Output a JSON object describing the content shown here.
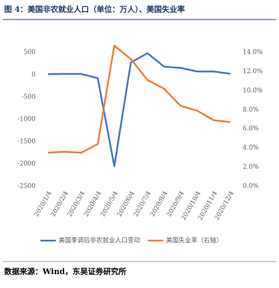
{
  "chart_data": {
    "type": "line",
    "title": "图 4：美国非农就业人口（单位：万人）、美国失业率",
    "source": "数据来源：Wind，东吴证券研究所",
    "categories": [
      "2020/1/4",
      "2020/2/4",
      "2020/3/4",
      "2020/4/4",
      "2020/5/4",
      "2020/6/4",
      "2020/7/4",
      "2020/8/4",
      "2020/9/4",
      "2020/10/4",
      "2020/11/4",
      "2020/12/4"
    ],
    "series": [
      {
        "name": "美国季调后非农就业人口变动",
        "color": "#4472c4",
        "values": [
          10,
          15,
          15,
          -80,
          -2050,
          270,
          480,
          180,
          150,
          70,
          70,
          20
        ]
      },
      {
        "name": "美国失业率（右轴）",
        "color": "#ed7d31",
        "axis": "y2",
        "values": [
          3.5,
          3.6,
          3.5,
          4.4,
          14.7,
          13.3,
          11.1,
          10.2,
          8.4,
          7.9,
          6.9,
          6.7
        ]
      }
    ],
    "ylim": [
      -2500,
      500
    ],
    "yticks": [
      -2500,
      -2000,
      -1500,
      -1000,
      -500,
      0,
      500
    ],
    "y2lim": [
      0,
      14
    ],
    "y2ticks": [
      {
        "value": 0,
        "label": "0.0%"
      },
      {
        "value": 2,
        "label": "2.0%"
      },
      {
        "value": 4,
        "label": "4.0%"
      },
      {
        "value": 6,
        "label": "6.0%"
      },
      {
        "value": 8,
        "label": "8.0%"
      },
      {
        "value": 10,
        "label": "10.0%"
      },
      {
        "value": 12,
        "label": "12.0%"
      },
      {
        "value": 14,
        "label": "14.0%"
      }
    ],
    "legend": "bottom"
  }
}
